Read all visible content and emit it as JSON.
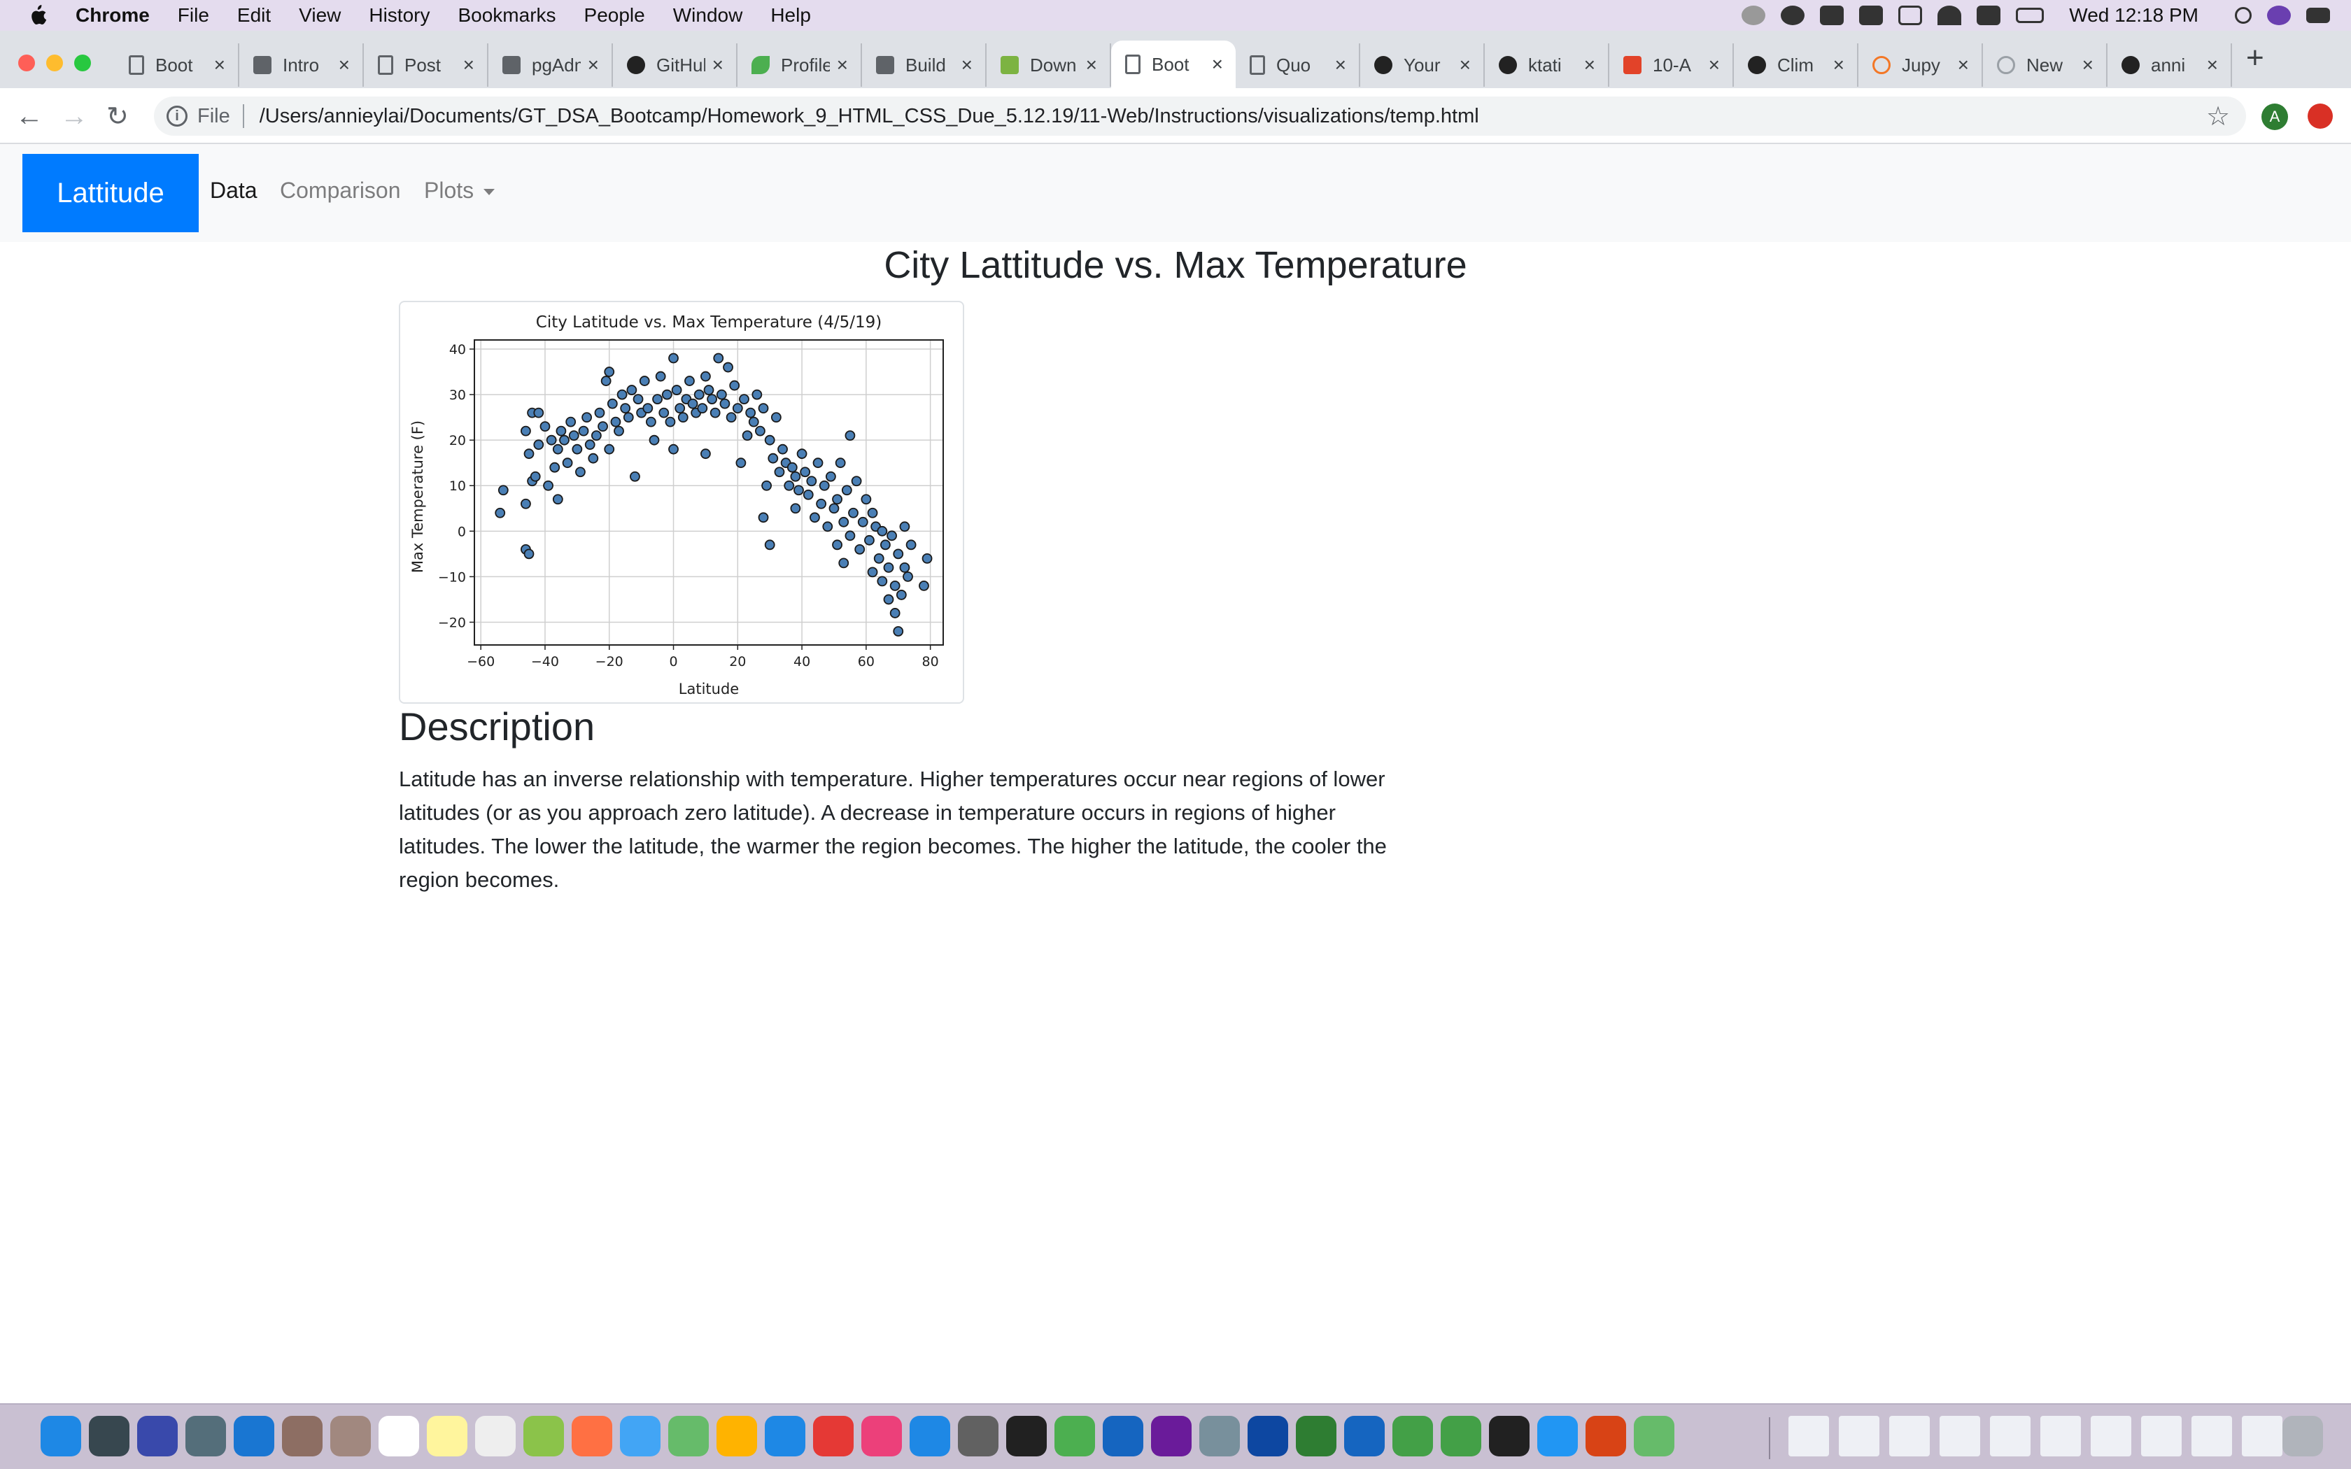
{
  "menubar": {
    "app": "Chrome",
    "items": [
      "File",
      "Edit",
      "View",
      "History",
      "Bookmarks",
      "People",
      "Window",
      "Help"
    ],
    "clock": "Wed 12:18 PM"
  },
  "tabs": [
    {
      "label": "Boot",
      "icon": "page-icon"
    },
    {
      "label": "Intro",
      "icon": "c-icon"
    },
    {
      "label": "Post",
      "icon": "page-icon"
    },
    {
      "label": "pgAdmin",
      "icon": "elephant-icon"
    },
    {
      "label": "GitHub",
      "icon": "github-icon"
    },
    {
      "label": "Profile",
      "icon": "leaf-icon"
    },
    {
      "label": "Build",
      "icon": "pm-icon"
    },
    {
      "label": "Down",
      "icon": "chart-icon"
    },
    {
      "label": "Boot",
      "icon": "page-icon",
      "active": true
    },
    {
      "label": "Quo",
      "icon": "page-icon"
    },
    {
      "label": "Your",
      "icon": "github-icon"
    },
    {
      "label": "ktati",
      "icon": "github-icon"
    },
    {
      "label": "10-A",
      "icon": "gitlab-icon"
    },
    {
      "label": "Clim",
      "icon": "github-icon"
    },
    {
      "label": "Jupy",
      "icon": "jupyter-icon"
    },
    {
      "label": "New",
      "icon": "loading-icon"
    },
    {
      "label": "anni",
      "icon": "github-icon"
    }
  ],
  "omnibox": {
    "scheme": "File",
    "url": "/Users/annieylai/Documents/GT_DSA_Bootcamp/Homework_9_HTML_CSS_Due_5.12.19/11-Web/Instructions/visualizations/temp.html"
  },
  "profile_initial": "A",
  "site": {
    "brand": "Lattitude",
    "nav": {
      "data": "Data",
      "comparison": "Comparison",
      "plots": "Plots"
    },
    "page_title": "City Lattitude vs. Max Temperature",
    "description_title": "Description",
    "description": "Latitude has an inverse relationship with temperature. Higher temperatures occur near regions of lower latitudes (or as you approach zero latitude). A decrease in temperature occurs in regions of higher latitudes. The lower the latitude, the warmer the region becomes. The higher the latitude, the cooler the region becomes."
  },
  "chart_data": {
    "type": "scatter",
    "title": "City Latitude vs. Max Temperature (4/5/19)",
    "xlabel": "Latitude",
    "ylabel": "Max Temperature (F)",
    "xlim": [
      -62,
      84
    ],
    "ylim": [
      -25,
      42
    ],
    "xticks": [
      -60,
      -40,
      -20,
      0,
      20,
      40,
      60,
      80
    ],
    "yticks": [
      -20,
      -10,
      0,
      10,
      20,
      30,
      40
    ],
    "xtick_labels": [
      "−60",
      "−40",
      "−20",
      "0",
      "20",
      "40",
      "60",
      "80"
    ],
    "ytick_labels": [
      "−20",
      "−10",
      "0",
      "10",
      "20",
      "30",
      "40"
    ],
    "grid": true,
    "marker_color": "#4a7fb5",
    "points": [
      [
        -54,
        4
      ],
      [
        -53,
        9
      ],
      [
        -46,
        -4
      ],
      [
        -45,
        -5
      ],
      [
        -46,
        22
      ],
      [
        -44,
        26
      ],
      [
        -42,
        26
      ],
      [
        -45,
        17
      ],
      [
        -44,
        11
      ],
      [
        -43,
        12
      ],
      [
        -42,
        19
      ],
      [
        -46,
        6
      ],
      [
        -39,
        10
      ],
      [
        -40,
        23
      ],
      [
        -38,
        20
      ],
      [
        -37,
        14
      ],
      [
        -36,
        7
      ],
      [
        -36,
        18
      ],
      [
        -35,
        22
      ],
      [
        -34,
        20
      ],
      [
        -33,
        15
      ],
      [
        -32,
        24
      ],
      [
        -31,
        21
      ],
      [
        -30,
        18
      ],
      [
        -29,
        13
      ],
      [
        -28,
        22
      ],
      [
        -27,
        25
      ],
      [
        -26,
        19
      ],
      [
        -25,
        16
      ],
      [
        -24,
        21
      ],
      [
        -23,
        26
      ],
      [
        -22,
        23
      ],
      [
        -21,
        33
      ],
      [
        -20,
        35
      ],
      [
        -20,
        18
      ],
      [
        -19,
        28
      ],
      [
        -18,
        24
      ],
      [
        -17,
        22
      ],
      [
        -16,
        30
      ],
      [
        -15,
        27
      ],
      [
        -14,
        25
      ],
      [
        -13,
        31
      ],
      [
        -12,
        12
      ],
      [
        -11,
        29
      ],
      [
        -10,
        26
      ],
      [
        -9,
        33
      ],
      [
        -8,
        27
      ],
      [
        -7,
        24
      ],
      [
        -6,
        20
      ],
      [
        -5,
        29
      ],
      [
        -4,
        34
      ],
      [
        -3,
        26
      ],
      [
        -2,
        30
      ],
      [
        -1,
        24
      ],
      [
        0,
        38
      ],
      [
        0,
        18
      ],
      [
        1,
        31
      ],
      [
        2,
        27
      ],
      [
        3,
        25
      ],
      [
        4,
        29
      ],
      [
        5,
        33
      ],
      [
        6,
        28
      ],
      [
        7,
        26
      ],
      [
        8,
        30
      ],
      [
        9,
        27
      ],
      [
        10,
        34
      ],
      [
        10,
        17
      ],
      [
        11,
        31
      ],
      [
        12,
        29
      ],
      [
        13,
        26
      ],
      [
        14,
        38
      ],
      [
        15,
        30
      ],
      [
        16,
        28
      ],
      [
        17,
        36
      ],
      [
        18,
        25
      ],
      [
        19,
        32
      ],
      [
        20,
        27
      ],
      [
        21,
        15
      ],
      [
        22,
        29
      ],
      [
        23,
        21
      ],
      [
        24,
        26
      ],
      [
        25,
        24
      ],
      [
        26,
        30
      ],
      [
        27,
        22
      ],
      [
        28,
        27
      ],
      [
        28,
        3
      ],
      [
        29,
        10
      ],
      [
        30,
        20
      ],
      [
        30,
        -3
      ],
      [
        31,
        16
      ],
      [
        32,
        25
      ],
      [
        33,
        13
      ],
      [
        34,
        18
      ],
      [
        35,
        15
      ],
      [
        36,
        10
      ],
      [
        37,
        14
      ],
      [
        38,
        12
      ],
      [
        38,
        5
      ],
      [
        39,
        9
      ],
      [
        40,
        17
      ],
      [
        41,
        13
      ],
      [
        42,
        8
      ],
      [
        43,
        11
      ],
      [
        44,
        3
      ],
      [
        45,
        15
      ],
      [
        46,
        6
      ],
      [
        47,
        10
      ],
      [
        48,
        1
      ],
      [
        49,
        12
      ],
      [
        50,
        5
      ],
      [
        51,
        -3
      ],
      [
        51,
        7
      ],
      [
        52,
        15
      ],
      [
        53,
        2
      ],
      [
        53,
        -7
      ],
      [
        54,
        9
      ],
      [
        55,
        21
      ],
      [
        55,
        -1
      ],
      [
        56,
        4
      ],
      [
        57,
        11
      ],
      [
        58,
        -4
      ],
      [
        59,
        2
      ],
      [
        60,
        7
      ],
      [
        61,
        -2
      ],
      [
        62,
        4
      ],
      [
        62,
        -9
      ],
      [
        63,
        1
      ],
      [
        64,
        -6
      ],
      [
        65,
        -11
      ],
      [
        65,
        0
      ],
      [
        66,
        -3
      ],
      [
        67,
        -15
      ],
      [
        67,
        -8
      ],
      [
        68,
        -1
      ],
      [
        69,
        -12
      ],
      [
        69,
        -18
      ],
      [
        70,
        -5
      ],
      [
        70,
        -22
      ],
      [
        71,
        -14
      ],
      [
        72,
        -8
      ],
      [
        72,
        1
      ],
      [
        73,
        -10
      ],
      [
        74,
        -3
      ],
      [
        78,
        -12
      ],
      [
        79,
        -6
      ]
    ]
  }
}
